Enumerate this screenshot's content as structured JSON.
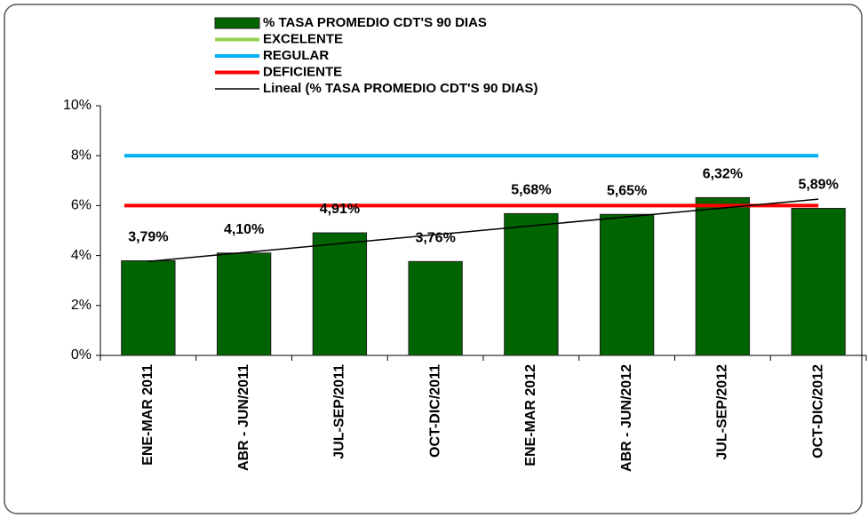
{
  "chart_data": {
    "type": "bar",
    "categories": [
      "ENE-MAR 2011",
      "ABR - JUN/2011",
      "JUL-SEP/2011",
      "OCT-DIC/2011",
      "ENE-MAR 2012",
      "ABR - JUN/2012",
      "JUL-SEP/2012",
      "OCT-DIC/2012"
    ],
    "series": [
      {
        "name": "% TASA PROMEDIO CDT'S 90 DIAS",
        "type": "bar",
        "color": "#006400",
        "values": [
          3.79,
          4.1,
          4.91,
          3.76,
          5.68,
          5.65,
          6.32,
          5.89
        ],
        "value_labels": [
          "3,79%",
          "4,10%",
          "4,91%",
          "3,76%",
          "5,68%",
          "5,65%",
          "6,32%",
          "5,89%"
        ]
      },
      {
        "name": "EXCELENTE",
        "type": "line",
        "color": "#92d050"
      },
      {
        "name": "REGULAR",
        "type": "line",
        "color": "#00b0f0",
        "values": [
          8,
          8,
          8,
          8,
          8,
          8,
          8,
          8
        ]
      },
      {
        "name": "DEFICIENTE",
        "type": "line",
        "color": "#ff0000",
        "values": [
          6,
          6,
          6,
          6,
          6,
          6,
          6,
          6
        ]
      },
      {
        "name": "Lineal (% TASA PROMEDIO CDT'S 90 DIAS)",
        "type": "trendline",
        "trendline": "linear",
        "color": "#000000"
      }
    ],
    "ylim": [
      0,
      10
    ],
    "yticks": [
      {
        "value": 0,
        "label": "0%"
      },
      {
        "value": 2,
        "label": "2%"
      },
      {
        "value": 4,
        "label": "4%"
      },
      {
        "value": 6,
        "label": "6%"
      },
      {
        "value": 8,
        "label": "8%"
      },
      {
        "value": 10,
        "label": "10%"
      }
    ]
  }
}
